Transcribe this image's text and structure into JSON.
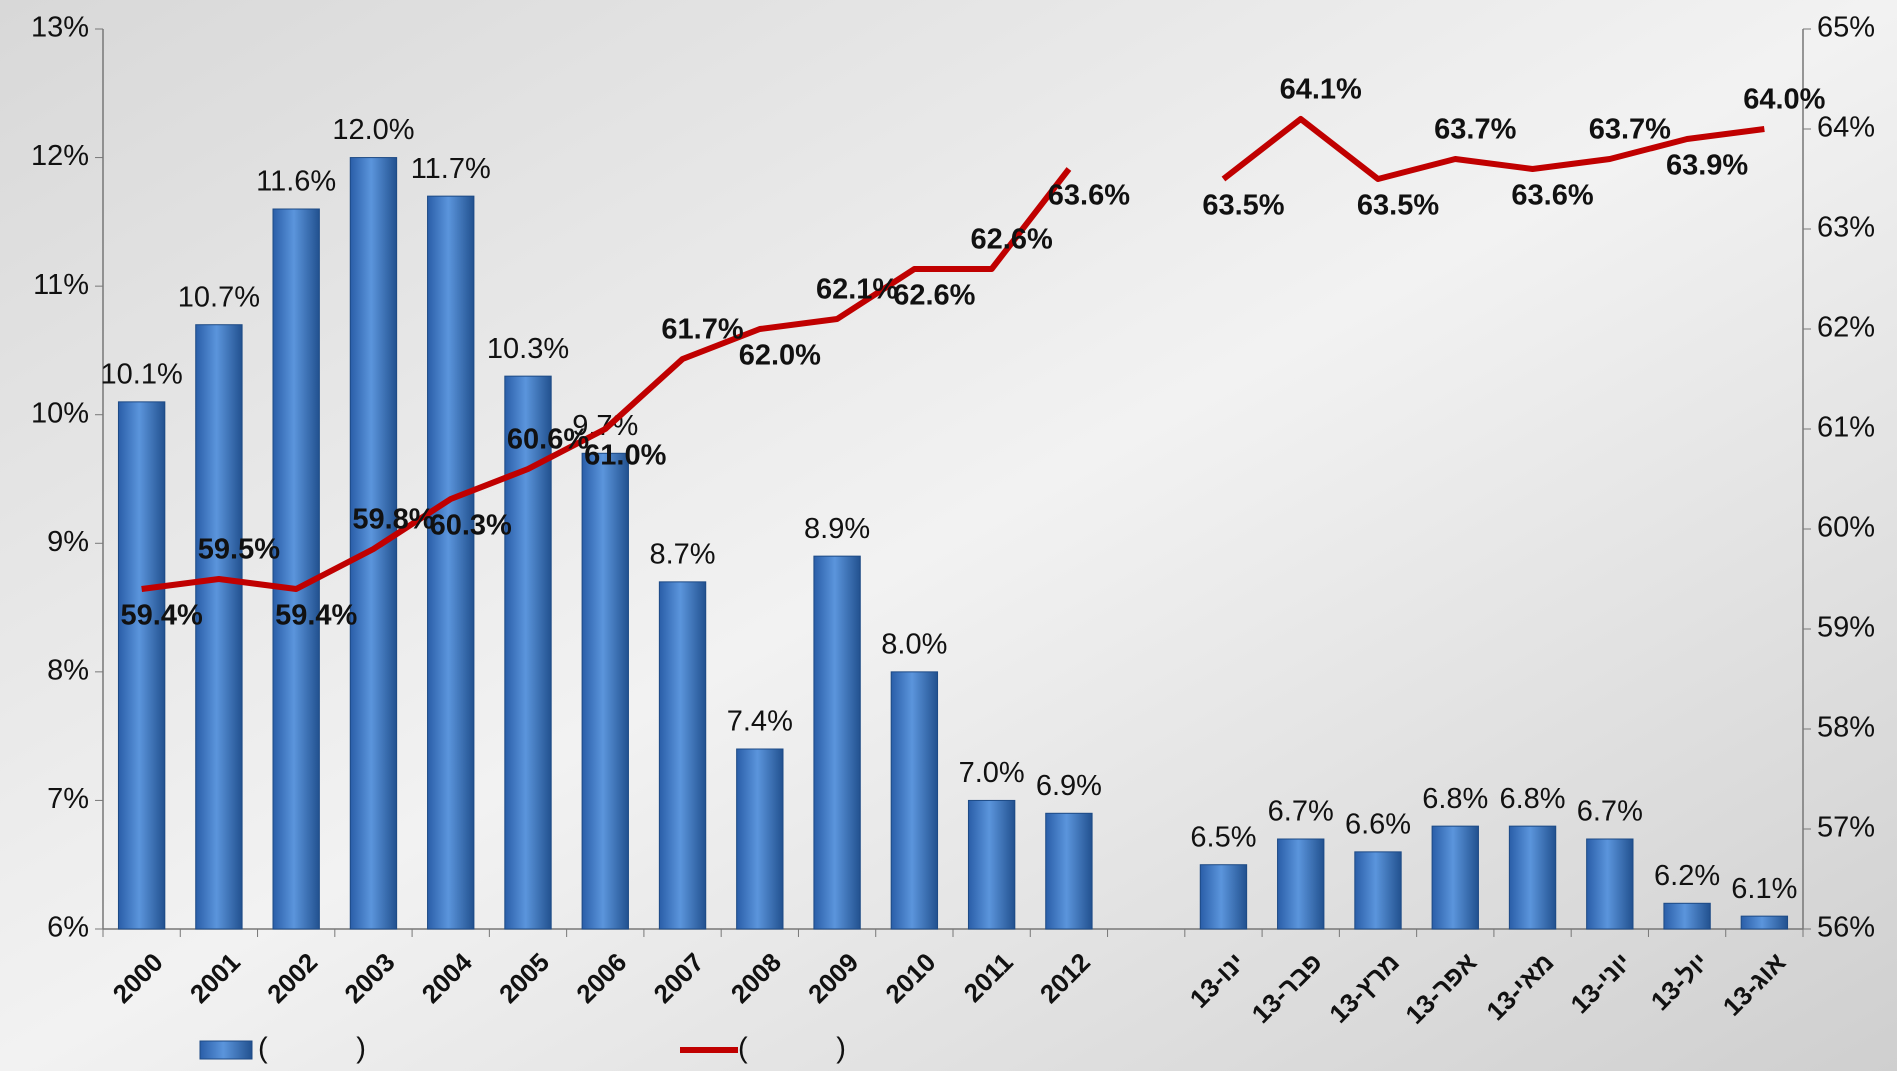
{
  "chart_data": {
    "type": "bar",
    "categories": [
      "2000",
      "2001",
      "2002",
      "2003",
      "2004",
      "2005",
      "2006",
      "2007",
      "2008",
      "2009",
      "2010",
      "2011",
      "2012",
      null,
      "ינו-13",
      "פבר-13",
      "מרץ-13",
      "אפר-13",
      "מאי-13",
      "יוני-13",
      "יול-13",
      "אוג-13"
    ],
    "series": [
      {
        "name": "(           )",
        "type": "bar",
        "color": "#3b78c6",
        "values": [
          10.1,
          10.7,
          11.6,
          12.0,
          11.7,
          10.3,
          9.7,
          8.7,
          7.4,
          8.9,
          8.0,
          7.0,
          6.9,
          null,
          6.5,
          6.7,
          6.6,
          6.8,
          6.8,
          6.7,
          6.2,
          6.1
        ],
        "value_labels": [
          "10.1%",
          "10.7%",
          "11.6%",
          "12.0%",
          "11.7%",
          "10.3%",
          "9.7%",
          "8.7%",
          "7.4%",
          "8.9%",
          "8.0%",
          "7.0%",
          "6.9%",
          null,
          "6.5%",
          "6.7%",
          "6.6%",
          "6.8%",
          "6.8%",
          "6.7%",
          "6.2%",
          "6.1%"
        ]
      },
      {
        "name": "(           )",
        "type": "line",
        "axis": "y2",
        "color": "#c00000",
        "values": [
          59.4,
          59.5,
          59.4,
          59.8,
          60.3,
          60.6,
          61.0,
          61.7,
          62.0,
          62.1,
          62.6,
          62.6,
          63.6,
          null,
          63.5,
          64.1,
          63.5,
          63.7,
          63.6,
          63.7,
          63.9,
          64.0
        ],
        "value_labels": [
          "59.4%",
          "59.5%",
          "59.4%",
          "59.8%",
          "60.3%",
          "60.6%",
          "61.0%",
          "61.7%",
          "62.0%",
          "62.1%",
          "62.6%",
          "62.6%",
          "63.6%",
          null,
          "63.5%",
          "64.1%",
          "63.5%",
          "63.7%",
          "63.6%",
          "63.7%",
          "63.9%",
          "64.0%"
        ]
      }
    ],
    "ylim": [
      6,
      13
    ],
    "yticks": [
      {
        "value": 6,
        "label": "6%"
      },
      {
        "value": 7,
        "label": "7%"
      },
      {
        "value": 8,
        "label": "8%"
      },
      {
        "value": 9,
        "label": "9%"
      },
      {
        "value": 10,
        "label": "10%"
      },
      {
        "value": 11,
        "label": "11%"
      },
      {
        "value": 12,
        "label": "12%"
      },
      {
        "value": 13,
        "label": "13%"
      }
    ],
    "y2lim": [
      56,
      65
    ],
    "y2ticks": [
      {
        "value": 56,
        "label": "56%"
      },
      {
        "value": 57,
        "label": "57%"
      },
      {
        "value": 58,
        "label": "58%"
      },
      {
        "value": 59,
        "label": "59%"
      },
      {
        "value": 60,
        "label": "60%"
      },
      {
        "value": 61,
        "label": "61%"
      },
      {
        "value": 62,
        "label": "62%"
      },
      {
        "value": 63,
        "label": "63%"
      },
      {
        "value": 64,
        "label": "64%"
      },
      {
        "value": 65,
        "label": "65%"
      }
    ],
    "legend": "bottom"
  }
}
